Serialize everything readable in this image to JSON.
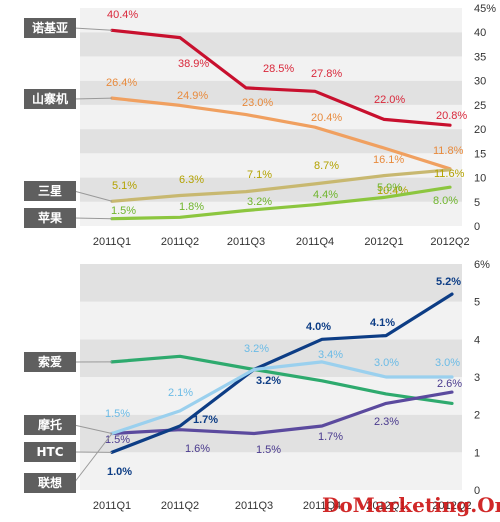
{
  "watermark": "DoMarketing.Org",
  "chart_data": [
    {
      "type": "line",
      "categories": [
        "2011Q1",
        "2011Q2",
        "2011Q3",
        "2011Q4",
        "2012Q1",
        "2012Q2"
      ],
      "ylim": [
        0,
        45
      ],
      "yticks": [
        "0",
        "5",
        "10",
        "15",
        "20",
        "25",
        "30",
        "35",
        "40",
        "45%"
      ],
      "series": [
        {
          "name": "诺基亚",
          "color": "#c8102e",
          "values": [
            40.4,
            38.9,
            28.5,
            27.8,
            22.0,
            20.8
          ],
          "labels": [
            "40.4%",
            "38.9%",
            "28.5%",
            "27.8%",
            "22.0%",
            "20.8%"
          ],
          "label_color": "#d9283b"
        },
        {
          "name": "山寨机",
          "color": "#f0a060",
          "values": [
            26.4,
            24.9,
            23.0,
            20.4,
            16.1,
            11.8
          ],
          "labels": [
            "26.4%",
            "24.9%",
            "23.0%",
            "20.4%",
            "16.1%",
            "11.8%"
          ],
          "label_color": "#e88a3c"
        },
        {
          "name": "三星",
          "color": "#c8b870",
          "values": [
            5.1,
            6.3,
            7.1,
            8.7,
            10.4,
            11.6
          ],
          "labels": [
            "5.1%",
            "6.3%",
            "7.1%",
            "8.7%",
            "10.4%",
            "11.6%"
          ],
          "label_color": "#b3a200"
        },
        {
          "name": "苹果",
          "color": "#8cc63f",
          "values": [
            1.5,
            1.8,
            3.2,
            4.4,
            5.9,
            8.0
          ],
          "labels": [
            "1.5%",
            "1.8%",
            "3.2%",
            "4.4%",
            "5.9%",
            "8.0%"
          ],
          "label_color": "#6fb52c"
        }
      ]
    },
    {
      "type": "line",
      "categories": [
        "2011Q1",
        "2011Q2",
        "2011Q3",
        "2011Q4",
        "2012Q1",
        "2012Q2"
      ],
      "ylim": [
        0,
        6
      ],
      "yticks": [
        "0",
        "1",
        "2",
        "3",
        "4",
        "5",
        "6%"
      ],
      "series": [
        {
          "name": "索爱",
          "color": "#2eaa6e",
          "values": [
            3.4,
            3.55,
            3.2,
            2.9,
            2.55,
            2.3
          ],
          "labels": [],
          "label_color": "#2eaa6e"
        },
        {
          "name": "摩托",
          "color": "#5b4a9e",
          "values": [
            1.5,
            1.6,
            1.5,
            1.7,
            2.3,
            2.6
          ],
          "labels": [
            "1.5%",
            "1.6%",
            "1.5%",
            "1.7%",
            "2.3%",
            "2.6%"
          ],
          "label_color": "#4a3a8e"
        },
        {
          "name": "HTC",
          "color": "#0d3d85",
          "values": [
            1.0,
            1.7,
            3.2,
            4.0,
            4.1,
            5.2
          ],
          "labels": [
            "1.0%",
            "1.7%",
            "3.2%",
            "4.0%",
            "4.1%",
            "5.2%"
          ],
          "label_color": "#0d3d85"
        },
        {
          "name": "联想",
          "color": "#9ad0ee",
          "values": [
            1.5,
            2.1,
            3.2,
            3.4,
            3.0,
            3.0
          ],
          "labels": [
            "1.5%",
            "2.1%",
            "3.2%",
            "3.4%",
            "3.0%",
            "3.0%"
          ],
          "label_color": "#6bbbe6"
        }
      ]
    }
  ]
}
